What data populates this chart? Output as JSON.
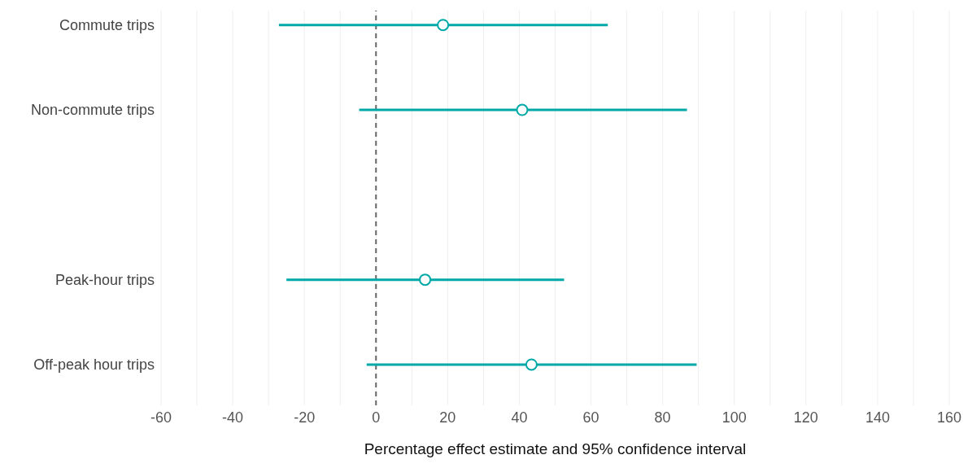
{
  "chart_data": {
    "type": "scatter",
    "orientation": "horizontal",
    "categories": [
      "Commute trips",
      "Non-commute trips",
      null,
      "Peak-hour trips",
      "Off-peak hour trips"
    ],
    "values": [
      18.7,
      40.8,
      null,
      13.7,
      43.4
    ],
    "errors": [
      [
        -27.1,
        64.7
      ],
      [
        -4.7,
        86.8
      ],
      null,
      [
        -25.0,
        52.5
      ],
      [
        -2.6,
        89.5
      ]
    ],
    "color": "#00a8a8",
    "marker": "circle",
    "xlabel": "Percentage effect estimate and 95% confidence interval",
    "xlim": [
      -60,
      160
    ],
    "xticks": [
      -60,
      {
        "value": -50,
        "label": null
      },
      -40,
      {
        "value": -30,
        "label": null
      },
      -20,
      {
        "value": -10,
        "label": null
      },
      0,
      {
        "value": 10,
        "label": null
      },
      20,
      {
        "value": 30,
        "label": null
      },
      40,
      {
        "value": 50,
        "label": null
      },
      60,
      {
        "value": 70,
        "label": null
      },
      80,
      {
        "value": 90,
        "label": null
      },
      100,
      {
        "value": 110,
        "label": null
      },
      120,
      {
        "value": 130,
        "label": null
      },
      140,
      {
        "value": 150,
        "label": null
      },
      160
    ],
    "grid": "x",
    "ref_lines": [
      {
        "axis": "x",
        "value": 0,
        "label": null,
        "color": "#666666",
        "line_style": "dashed"
      }
    ]
  }
}
